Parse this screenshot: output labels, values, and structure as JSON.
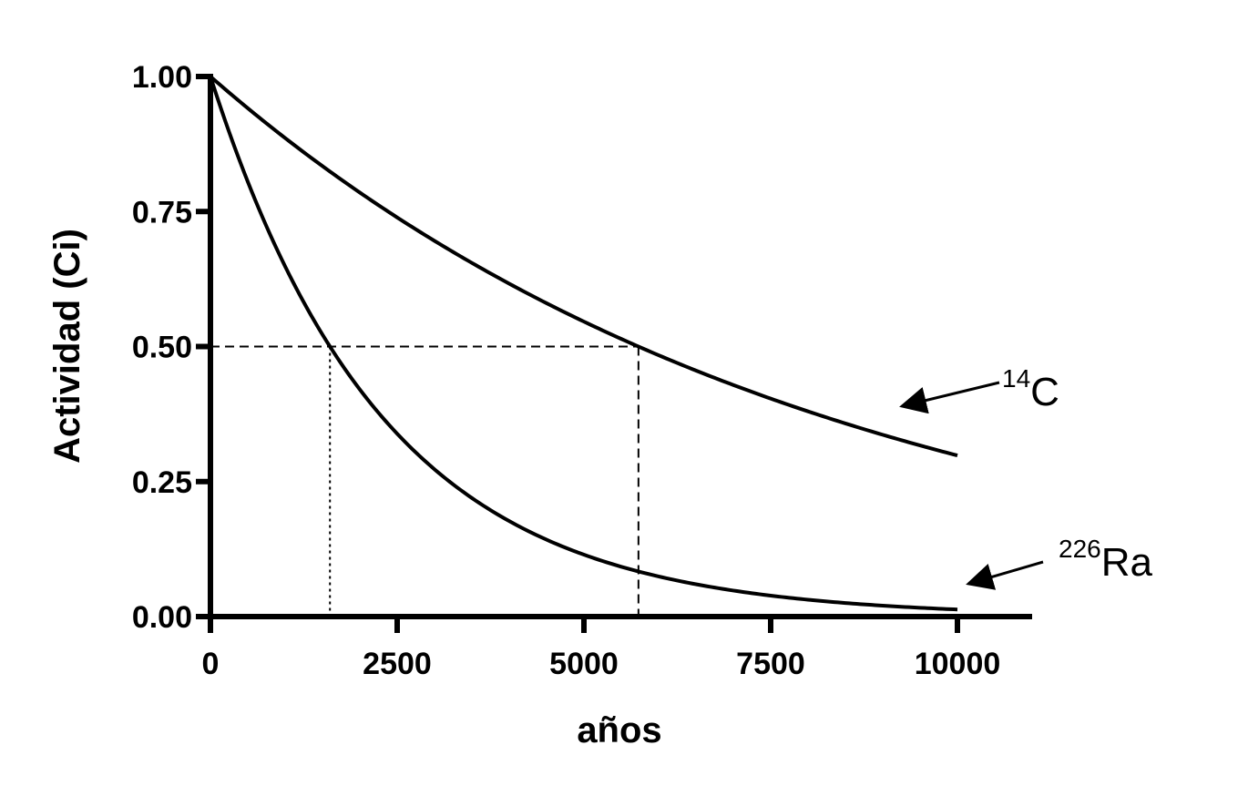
{
  "chart_data": {
    "type": "line",
    "title": "",
    "xlabel": "años",
    "ylabel": "Actividad (Ci)",
    "xlim": [
      0,
      11000
    ],
    "ylim": [
      0,
      1.0
    ],
    "xticks": [
      0,
      2500,
      5000,
      7500,
      10000
    ],
    "xtick_labels": [
      "0",
      "2500",
      "5000",
      "7500",
      "10000"
    ],
    "yticks": [
      0,
      0.25,
      0.5,
      0.75,
      1.0
    ],
    "ytick_labels": [
      "0.00",
      "0.25",
      "0.50",
      "0.75",
      "1.00"
    ],
    "grid": false,
    "series": [
      {
        "name": "14C",
        "label_sup": "14",
        "label_main": "C",
        "half_life": 5730,
        "x": [
          0,
          1000,
          2000,
          3000,
          4000,
          5000,
          6000,
          7000,
          8000,
          9000,
          10000
        ],
        "values": [
          1.0,
          0.886,
          0.785,
          0.696,
          0.617,
          0.546,
          0.484,
          0.429,
          0.38,
          0.337,
          0.298
        ]
      },
      {
        "name": "226Ra",
        "label_sup": "226",
        "label_main": "Ra",
        "half_life": 1600,
        "x": [
          0,
          1000,
          2000,
          3000,
          4000,
          5000,
          6000,
          7000,
          8000,
          9000,
          10000
        ],
        "values": [
          1.0,
          0.648,
          0.42,
          0.273,
          0.177,
          0.115,
          0.074,
          0.048,
          0.031,
          0.02,
          0.013
        ]
      }
    ],
    "reference_lines": [
      {
        "name": "half-life-ra",
        "x": 1600,
        "y": 0.5,
        "style": "dotted"
      },
      {
        "name": "half-life-c14",
        "x": 5730,
        "y": 0.5,
        "style": "dashed"
      }
    ]
  }
}
